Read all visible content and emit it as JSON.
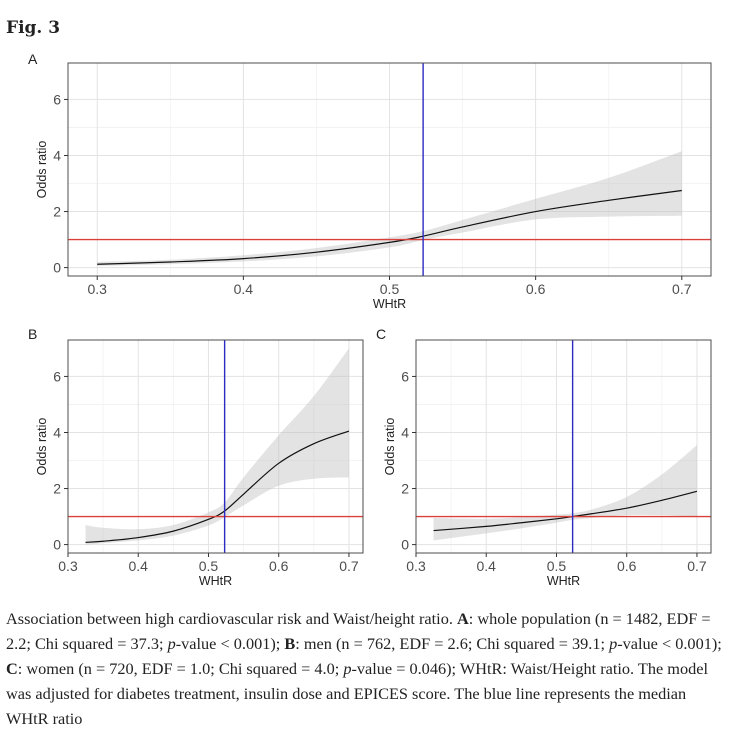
{
  "figure_title": "Fig. 3",
  "chart_data": [
    {
      "type": "line",
      "panel": "A",
      "xlabel": "WHtR",
      "ylabel": "Odds ratio",
      "xlim": [
        0.28,
        0.72
      ],
      "ylim": [
        -0.3,
        7.3
      ],
      "xticks": [
        0.3,
        0.4,
        0.5,
        0.6,
        0.7
      ],
      "xtick_labels": [
        "0.3",
        "0.4",
        "0.5",
        "0.6",
        "0.7"
      ],
      "yticks": [
        0,
        2,
        4,
        6
      ],
      "ytick_labels": [
        "0",
        "2",
        "4",
        "6"
      ],
      "grid": true,
      "reference_hline": 1,
      "reference_hline_color": "#d9403a",
      "median_vline": 0.523,
      "median_vline_color": "#2b2bc4",
      "series": [
        {
          "x": [
            0.3,
            0.35,
            0.4,
            0.45,
            0.5,
            0.523,
            0.55,
            0.6,
            0.65,
            0.7
          ],
          "y": [
            0.12,
            0.2,
            0.32,
            0.55,
            0.9,
            1.12,
            1.45,
            2.0,
            2.4,
            2.75
          ],
          "lower": [
            0.06,
            0.12,
            0.22,
            0.4,
            0.72,
            0.98,
            1.25,
            1.72,
            1.82,
            1.85
          ],
          "upper": [
            0.2,
            0.28,
            0.44,
            0.7,
            1.08,
            1.3,
            1.7,
            2.45,
            3.2,
            4.15
          ]
        }
      ]
    },
    {
      "type": "line",
      "panel": "B",
      "xlabel": "WHtR",
      "ylabel": "Odds ratio",
      "xlim": [
        0.3,
        0.72
      ],
      "ylim": [
        -0.3,
        7.3
      ],
      "xticks": [
        0.3,
        0.4,
        0.5,
        0.6,
        0.7
      ],
      "xtick_labels": [
        "0.3",
        "0.4",
        "0.5",
        "0.6",
        "0.7"
      ],
      "yticks": [
        0,
        2,
        4,
        6
      ],
      "ytick_labels": [
        "0",
        "2",
        "4",
        "6"
      ],
      "grid": true,
      "reference_hline": 1,
      "reference_hline_color": "#d9403a",
      "median_vline": 0.523,
      "median_vline_color": "#2b2bc4",
      "series": [
        {
          "x": [
            0.325,
            0.35,
            0.4,
            0.45,
            0.5,
            0.523,
            0.55,
            0.6,
            0.65,
            0.7
          ],
          "y": [
            0.08,
            0.12,
            0.25,
            0.48,
            0.9,
            1.2,
            1.8,
            2.9,
            3.6,
            4.05
          ],
          "lower": [
            0.0,
            0.05,
            0.15,
            0.32,
            0.68,
            0.98,
            1.4,
            2.1,
            2.35,
            2.4
          ],
          "upper": [
            0.7,
            0.6,
            0.55,
            0.7,
            1.15,
            1.5,
            2.4,
            3.9,
            5.3,
            7.0
          ]
        }
      ]
    },
    {
      "type": "line",
      "panel": "C",
      "xlabel": "WHtR",
      "ylabel": "Odds ratio",
      "xlim": [
        0.3,
        0.72
      ],
      "ylim": [
        -0.3,
        7.3
      ],
      "xticks": [
        0.3,
        0.4,
        0.5,
        0.6,
        0.7
      ],
      "xtick_labels": [
        "0.3",
        "0.4",
        "0.5",
        "0.6",
        "0.7"
      ],
      "yticks": [
        0,
        2,
        4,
        6
      ],
      "ytick_labels": [
        "0",
        "2",
        "4",
        "6"
      ],
      "grid": true,
      "reference_hline": 1,
      "reference_hline_color": "#d9403a",
      "median_vline": 0.523,
      "median_vline_color": "#2b2bc4",
      "series": [
        {
          "x": [
            0.325,
            0.4,
            0.45,
            0.5,
            0.523,
            0.55,
            0.6,
            0.65,
            0.7
          ],
          "y": [
            0.5,
            0.65,
            0.78,
            0.92,
            1.0,
            1.1,
            1.3,
            1.58,
            1.9
          ],
          "lower": [
            0.15,
            0.4,
            0.58,
            0.78,
            0.88,
            0.95,
            1.05,
            1.05,
            1.0
          ],
          "upper": [
            0.95,
            0.92,
            0.98,
            1.07,
            1.12,
            1.25,
            1.7,
            2.5,
            3.55
          ]
        }
      ]
    }
  ],
  "caption": {
    "intro": "Association between high cardiovascular risk and Waist/height ratio. ",
    "a_label": "A",
    "a_text": ": whole population (n = 1482, EDF = 2.2; Chi squared = 37.3; ",
    "p": "p",
    "a_p": "-value < 0.001); ",
    "b_label": "B",
    "b_text": ": men (n = 762, EDF = 2.6; Chi squared = 39.1; ",
    "b_p": "-value < 0.001); ",
    "c_label": "C",
    "c_text": ": women (n = 720, EDF = 1.0; Chi squared = 4.0; ",
    "c_p": "-value = 0.046); WHtR: Waist/Height ratio. The model was adjusted for diabetes treatment, insulin dose and EPICES score. The blue line represents the median WHtR ratio"
  }
}
